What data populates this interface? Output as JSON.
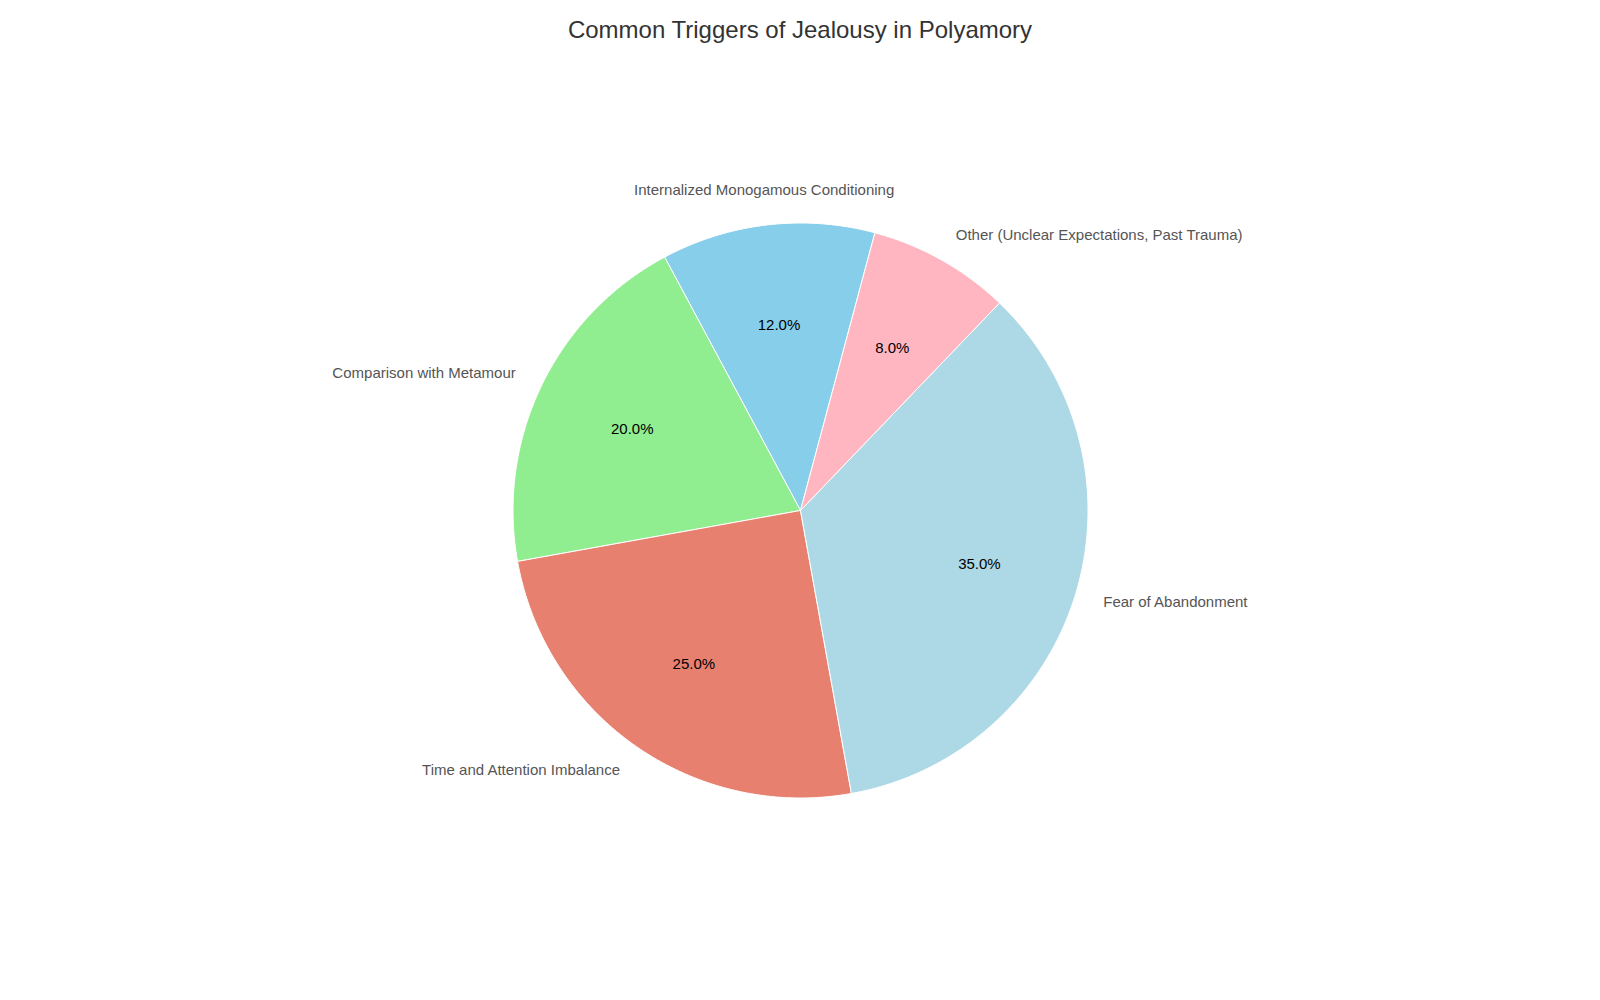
{
  "chart_data": {
    "type": "pie",
    "title": "Common Triggers of Jealousy in Polyamory",
    "categories": [
      "Internalized Monogamous Conditioning",
      "Comparison with Metamour",
      "Time and Attention Imbalance",
      "Fear of Abandonment",
      "Other (Unclear Expectations, Past Trauma)"
    ],
    "values": [
      12.0,
      20.0,
      25.0,
      35.0,
      8.0
    ],
    "value_labels": [
      "12.0%",
      "20.0%",
      "25.0%",
      "35.0%",
      "8.0%"
    ],
    "colors": [
      "#87CEEB",
      "#90EE90",
      "#E88070",
      "#ADD8E6",
      "#FFB6C1"
    ],
    "data_labels": true
  }
}
